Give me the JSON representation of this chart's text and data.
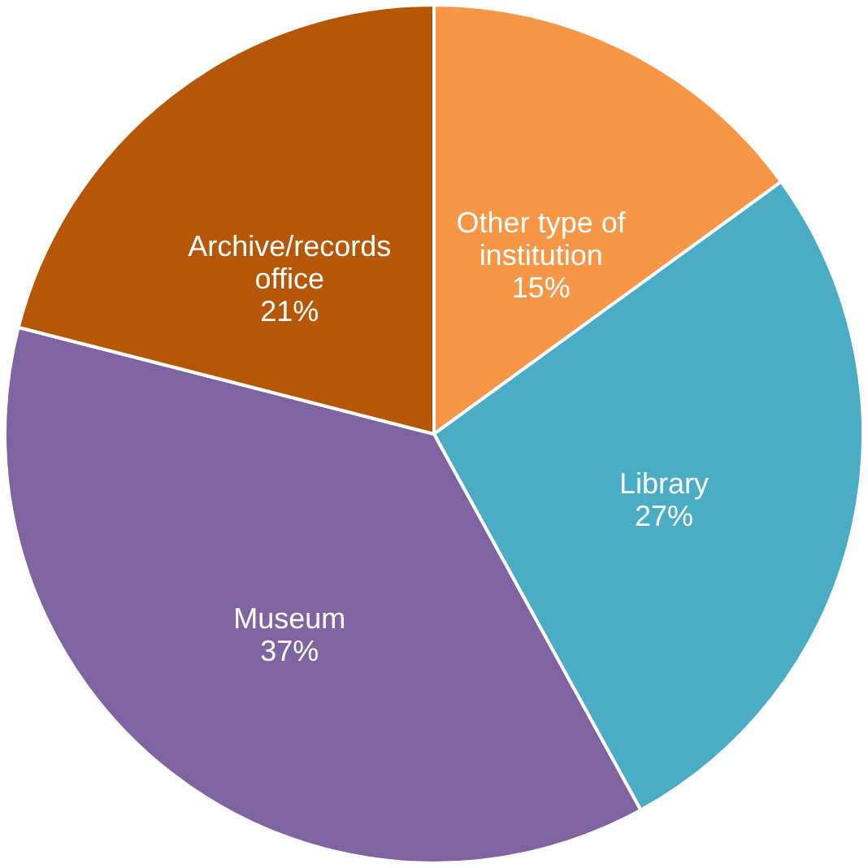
{
  "chart_data": {
    "type": "pie",
    "categories": [
      "Other type of institution",
      "Library",
      "Museum",
      "Archive/records office"
    ],
    "values": [
      15,
      27,
      37,
      21
    ],
    "colors": [
      "#f79646",
      "#4bacc6",
      "#8064a2",
      "#b65708"
    ],
    "value_labels": [
      "15%",
      "27%",
      "37%",
      "21%"
    ]
  }
}
